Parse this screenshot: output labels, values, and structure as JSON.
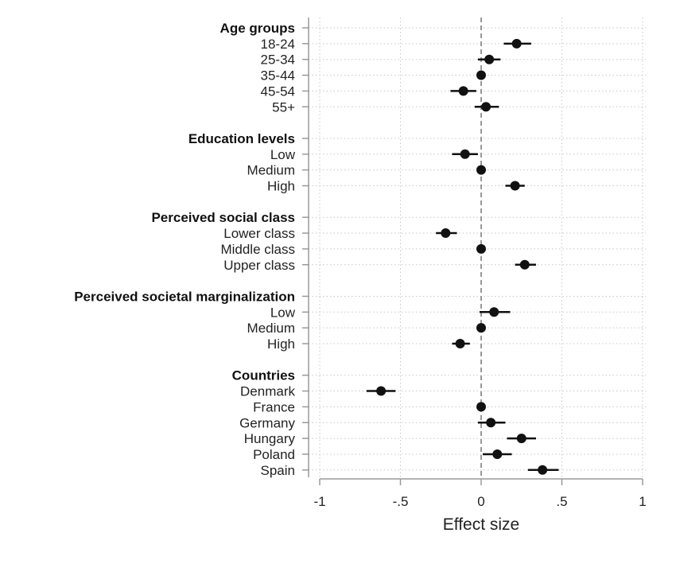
{
  "chart_data": {
    "type": "scatter",
    "subtype": "coefficient-plot",
    "xlabel": "Effect size",
    "xlim": [
      -1,
      1
    ],
    "xticks": [
      -1,
      -0.5,
      0,
      0.5,
      1
    ],
    "xtick_labels": [
      "-1",
      "-.5",
      "0",
      ".5",
      "1"
    ],
    "reference_line": 0,
    "grid": true,
    "marker_color": "#111111",
    "groups": [
      {
        "label": "Age groups",
        "items": [
          {
            "label": "18-24",
            "estimate": 0.22,
            "ci": [
              0.14,
              0.31
            ]
          },
          {
            "label": "25-34",
            "estimate": 0.05,
            "ci": [
              -0.02,
              0.12
            ]
          },
          {
            "label": "35-44",
            "estimate": 0.0,
            "ci": [
              0.0,
              0.0
            ]
          },
          {
            "label": "45-54",
            "estimate": -0.11,
            "ci": [
              -0.19,
              -0.03
            ]
          },
          {
            "label": "55+",
            "estimate": 0.03,
            "ci": [
              -0.04,
              0.11
            ]
          }
        ]
      },
      {
        "label": "Education levels",
        "items": [
          {
            "label": "Low",
            "estimate": -0.1,
            "ci": [
              -0.18,
              -0.02
            ]
          },
          {
            "label": "Medium",
            "estimate": 0.0,
            "ci": [
              0.0,
              0.0
            ]
          },
          {
            "label": "High",
            "estimate": 0.21,
            "ci": [
              0.15,
              0.27
            ]
          }
        ]
      },
      {
        "label": "Perceived social class",
        "items": [
          {
            "label": "Lower class",
            "estimate": -0.22,
            "ci": [
              -0.28,
              -0.15
            ]
          },
          {
            "label": "Middle class",
            "estimate": 0.0,
            "ci": [
              0.0,
              0.0
            ]
          },
          {
            "label": "Upper class",
            "estimate": 0.27,
            "ci": [
              0.21,
              0.34
            ]
          }
        ]
      },
      {
        "label": "Perceived societal marginalization",
        "items": [
          {
            "label": "Low",
            "estimate": 0.08,
            "ci": [
              -0.01,
              0.18
            ]
          },
          {
            "label": "Medium",
            "estimate": 0.0,
            "ci": [
              0.0,
              0.0
            ]
          },
          {
            "label": "High",
            "estimate": -0.13,
            "ci": [
              -0.18,
              -0.07
            ]
          }
        ]
      },
      {
        "label": "Countries",
        "items": [
          {
            "label": "Denmark",
            "estimate": -0.62,
            "ci": [
              -0.71,
              -0.53
            ]
          },
          {
            "label": "France",
            "estimate": 0.0,
            "ci": [
              0.0,
              0.0
            ]
          },
          {
            "label": "Germany",
            "estimate": 0.06,
            "ci": [
              -0.02,
              0.15
            ]
          },
          {
            "label": "Hungary",
            "estimate": 0.25,
            "ci": [
              0.16,
              0.34
            ]
          },
          {
            "label": "Poland",
            "estimate": 0.1,
            "ci": [
              0.01,
              0.19
            ]
          },
          {
            "label": "Spain",
            "estimate": 0.38,
            "ci": [
              0.29,
              0.48
            ]
          }
        ]
      }
    ]
  }
}
